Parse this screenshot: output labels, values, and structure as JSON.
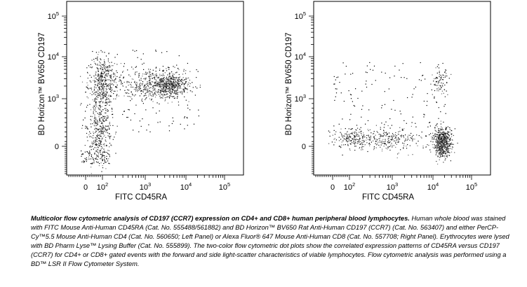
{
  "chart_data": [
    {
      "type": "scatter",
      "panel": "left",
      "xlabel": "FITC CD45RA",
      "ylabel": "BD Horizon™ BV650 CD197",
      "x_scale": "biexponential",
      "y_scale": "biexponential",
      "xlim": [
        -30,
        100000
      ],
      "ylim": [
        -100,
        100000
      ],
      "x_ticks": [
        "0",
        "10^2",
        "10^3",
        "10^4",
        "10^5"
      ],
      "y_ticks": [
        "0",
        "10^3",
        "10^4",
        "10^5"
      ],
      "populations": [
        {
          "x": 100,
          "y": 800,
          "approx_events": 900
        },
        {
          "x": 3000,
          "y": 2200,
          "approx_events": 700
        }
      ]
    },
    {
      "type": "scatter",
      "panel": "right",
      "xlabel": "FITC CD45RA",
      "ylabel": "BD Horizon™ BV650 CD197",
      "x_scale": "biexponential",
      "y_scale": "biexponential",
      "xlim": [
        -30,
        100000
      ],
      "ylim": [
        -100,
        100000
      ],
      "x_ticks": [
        "0",
        "10^2",
        "10^3",
        "10^4",
        "10^5"
      ],
      "y_ticks": [
        "0",
        "10^3",
        "10^4",
        "10^5"
      ],
      "populations": [
        {
          "x": 17000,
          "y": 0,
          "approx_events": 800
        },
        {
          "x": 15000,
          "y": 2500,
          "approx_events": 100
        },
        {
          "x": 500,
          "y": 0,
          "approx_events": 500
        }
      ]
    }
  ],
  "caption": {
    "bold": "Multicolor flow cytometric analysis of CD197 (CCR7) expression on CD4+ and CD8+ human peripheral blood lymphocytes.",
    "body": " Human whole blood was stained with FITC Mouse Anti-Human CD45RA (Cat. No. 555488/561882) and BD Horizon™ BV650 Rat Anti-Human CD197 (CCR7) (Cat. No. 563407) and either PerCP-Cy™5.5 Mouse Anti-Human CD4 (Cat. No. 560650; Left Panel) or Alexa Fluor® 647 Mouse Anti-Human CD8 (Cat. No. 557708; Right Panel). Erythrocytes were lysed with BD Pharm Lyse™ Lysing Buffer (Cat. No. 555899). The two-color flow cytometric dot plots show the correlated expression patterns of CD45RA versus CD197 (CCR7) for CD4+ or CD8+ gated events with the forward and side light-scatter characteristics of viable lymphocytes. Flow cytometric analysis was performed using a BD™ LSR II Flow Cytometer System."
  }
}
